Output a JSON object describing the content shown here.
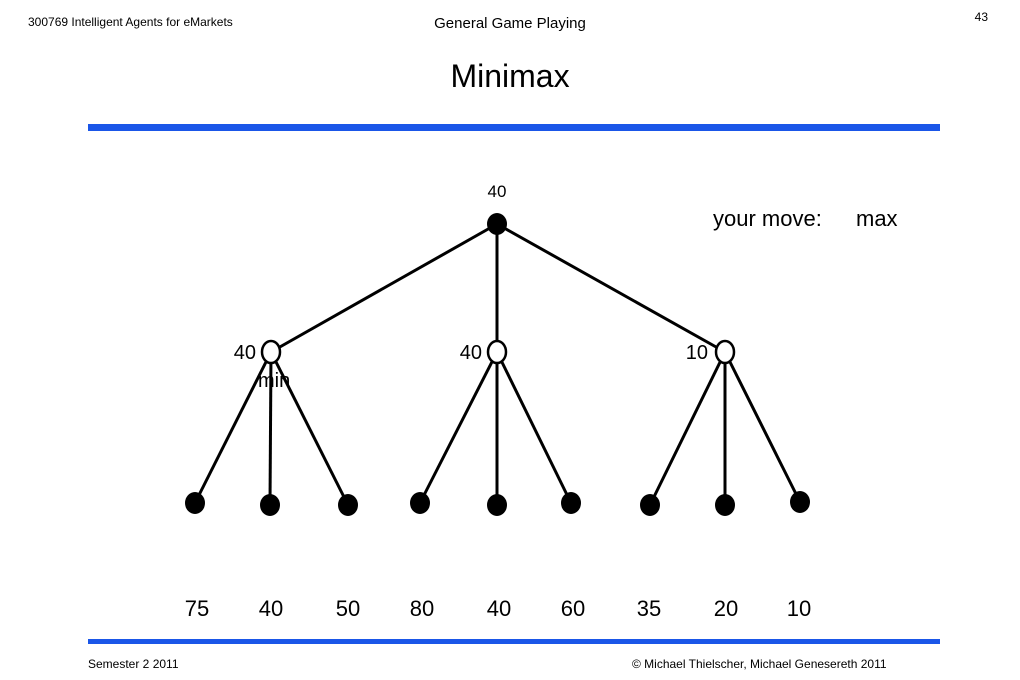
{
  "header": {
    "course": "300769 Intelligent Agents for eMarkets",
    "topic": "General Game Playing",
    "slide_number": "43"
  },
  "title": "Minimax",
  "colors": {
    "accent_rule": "#1a56e8"
  },
  "annotation": {
    "move_label": "your move:",
    "move_value": "max",
    "min_label": "min"
  },
  "tree": {
    "root": {
      "value": "40"
    },
    "min_nodes": [
      {
        "value": "40"
      },
      {
        "value": "40"
      },
      {
        "value": "10"
      }
    ],
    "leaves": [
      "75",
      "40",
      "50",
      "80",
      "40",
      "60",
      "35",
      "20",
      "10"
    ]
  },
  "footer": {
    "semester": "Semester 2 2011",
    "copyright": "© Michael Thielscher, Michael Genesereth 2011"
  }
}
